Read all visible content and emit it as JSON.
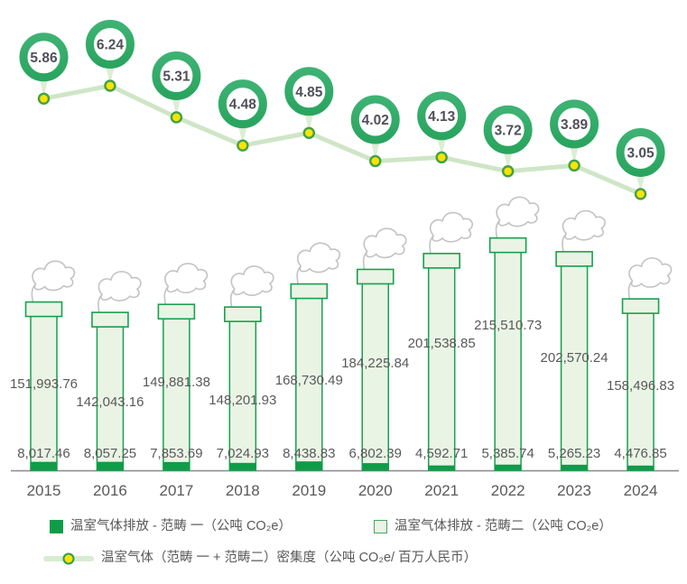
{
  "chart_data": {
    "type": "bar",
    "variant": "stacked-chimney-bars-with-intensity-line-overlay",
    "categories": [
      "2015",
      "2016",
      "2017",
      "2018",
      "2019",
      "2020",
      "2021",
      "2022",
      "2023",
      "2024"
    ],
    "series": [
      {
        "name": "温室气体排放 - 范畴 一（公吨 CO₂e）",
        "type": "bar",
        "stack": "emissions",
        "values": [
          8017.46,
          8057.25,
          7853.69,
          7024.93,
          8438.83,
          6802.39,
          4592.71,
          5385.74,
          5265.23,
          4476.85
        ],
        "labels": [
          "8,017.46",
          "8,057.25",
          "7,853.69",
          "7,024.93",
          "8,438.83",
          "6,802.39",
          "4,592.71",
          "5,385.74",
          "5,265.23",
          "4,476.85"
        ],
        "color": "#0f9c48"
      },
      {
        "name": "温室气体排放 - 范畴二（公吨 CO₂e）",
        "type": "bar",
        "stack": "emissions",
        "values": [
          151993.76,
          142043.16,
          149881.38,
          148201.93,
          168730.49,
          184225.84,
          201538.85,
          215510.73,
          202570.24,
          158496.83
        ],
        "labels": [
          "151,993.76",
          "142,043.16",
          "149,881.38",
          "148,201.93",
          "168,730.49",
          "184,225.84",
          "201,538.85",
          "215,510.73",
          "202,570.24",
          "158,496.83"
        ],
        "fill": "#eaf4e5",
        "border": "#18a04e"
      },
      {
        "name": "温室气体（范畴 一 + 范畴二）密集度（公吨 CO₂e/ 百万人民币）",
        "type": "line",
        "values": [
          5.86,
          6.24,
          5.31,
          4.48,
          4.85,
          4.02,
          4.13,
          3.72,
          3.89,
          3.05
        ],
        "labels": [
          "5.86",
          "6.24",
          "5.31",
          "4.48",
          "4.85",
          "4.02",
          "4.13",
          "3.72",
          "3.89",
          "3.05"
        ],
        "line_color": "#cfe6c6",
        "marker_fill": "#f8e402",
        "marker_border": "#43a047",
        "badge_ring": "#29a55f"
      }
    ],
    "legend_position": "bottom",
    "grid": false,
    "axis": {
      "x_visible": true,
      "y_visible": false
    }
  },
  "legend": {
    "items": [
      {
        "label": "温室气体排放 - 范畴 一（公吨 CO₂e）",
        "swatch": "dark-green-square"
      },
      {
        "label": "温室气体排放 - 范畴二（公吨 CO₂e）",
        "swatch": "light-green-square"
      },
      {
        "label": "温室气体（范畴 一 + 范畴二）密集度（公吨 CO₂e/ 百万人民币）",
        "swatch": "line-with-yellow-marker"
      }
    ]
  },
  "colors": {
    "dark_green": "#0f9c48",
    "bar_border": "#18a04e",
    "bar_fill": "#eaf4e5",
    "badge_ring": "#29a55f",
    "badge_ring_light": "#3db273",
    "badge_text": "#50505b",
    "pale_line": "#cfe6c6",
    "pointer": "#dceed5",
    "marker_yellow": "#f8e402",
    "marker_border": "#43a047",
    "label_gray": "#595959",
    "axis_gray": "#8f8f8f",
    "cloud_gray": "#c3c3c3"
  }
}
